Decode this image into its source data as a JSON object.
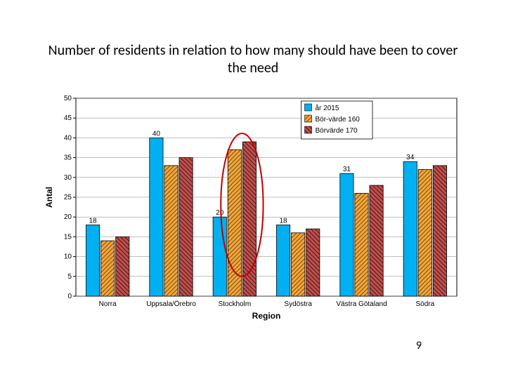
{
  "title": "Number of residents in relation to how many should have been to cover the need",
  "slide_number": "9",
  "chart": {
    "type": "bar",
    "background_color": "#ffffff",
    "plot_border_color": "#000000",
    "plot_border_width": 1,
    "title_fontsize": 20,
    "y_axis": {
      "label": "Antal",
      "label_fontsize": 12,
      "ylim": [
        0,
        50
      ],
      "tick_step": 5,
      "tick_fontsize": 10
    },
    "x_axis": {
      "label": "Region",
      "label_fontsize": 12,
      "tick_fontsize": 10
    },
    "gridline_color": "#7f7f7f",
    "categories": [
      "Norra",
      "Uppsala/Örebro",
      "Stockholm",
      "Sydöstra",
      "Västra Götaland",
      "Södra"
    ],
    "series": [
      {
        "name": "år 2015",
        "fill": "#00b0f0",
        "pattern": "none",
        "border_color": "#000000",
        "data_labels": [
          18,
          40,
          20,
          18,
          31,
          34
        ],
        "show_labels": true
      },
      {
        "name": "Bör-värde 160",
        "fill": "#f3a73b",
        "pattern": "diag-up",
        "pattern_color": "#8a5a15",
        "border_color": "#000000",
        "data_labels": [
          14,
          33,
          37,
          16,
          26,
          32
        ],
        "show_labels": false
      },
      {
        "name": "Börvärde 170",
        "fill": "#c0504d",
        "pattern": "diag-down",
        "pattern_color": "#5a1f1d",
        "border_color": "#000000",
        "data_labels": [
          15,
          35,
          39,
          17,
          28,
          33
        ],
        "show_labels": false
      }
    ],
    "bar_group_width": 0.68,
    "bar_inner_gap": 0.03,
    "legend": {
      "position": "top-right-inside",
      "border_color": "#000000",
      "background": "#ffffff",
      "fontsize": 10,
      "marker_size": 10
    },
    "highlight_ellipse": {
      "category_index": 2,
      "stroke": "#c00000",
      "stroke_width": 2
    }
  }
}
